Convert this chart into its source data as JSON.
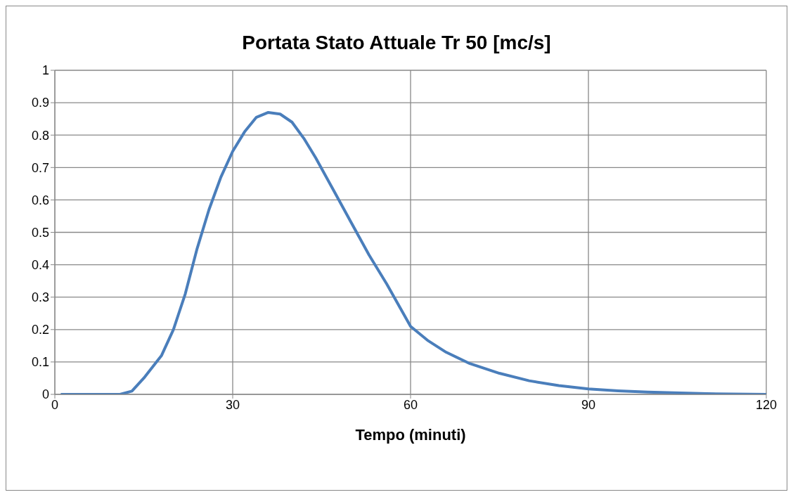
{
  "chart_data": {
    "type": "line",
    "title": "Portata Stato Attuale Tr 50 [mc/s]",
    "xlabel": "Tempo (minuti)",
    "xlim": [
      0,
      120
    ],
    "xticks": [
      0,
      30,
      60,
      90,
      120
    ],
    "ylim": [
      0,
      1
    ],
    "yticks": [
      0,
      0.1,
      0.2,
      0.3,
      0.4,
      0.5,
      0.6,
      0.7,
      0.8,
      0.9,
      1
    ],
    "grid": true,
    "series": [
      {
        "color": "#4a7ebb",
        "x": [
          1,
          5,
          11,
          13,
          15,
          18,
          20,
          22,
          24,
          26,
          28,
          30,
          32,
          34,
          36,
          38,
          40,
          42,
          44,
          47,
          50,
          53,
          56,
          60,
          63,
          66,
          70,
          75,
          80,
          85,
          90,
          95,
          100,
          110,
          120
        ],
        "values": [
          0,
          0,
          0,
          0.01,
          0.05,
          0.12,
          0.2,
          0.31,
          0.45,
          0.57,
          0.67,
          0.75,
          0.81,
          0.855,
          0.87,
          0.865,
          0.84,
          0.79,
          0.73,
          0.63,
          0.53,
          0.43,
          0.34,
          0.21,
          0.165,
          0.13,
          0.095,
          0.065,
          0.042,
          0.027,
          0.017,
          0.011,
          0.007,
          0.002,
          0
        ]
      }
    ]
  }
}
